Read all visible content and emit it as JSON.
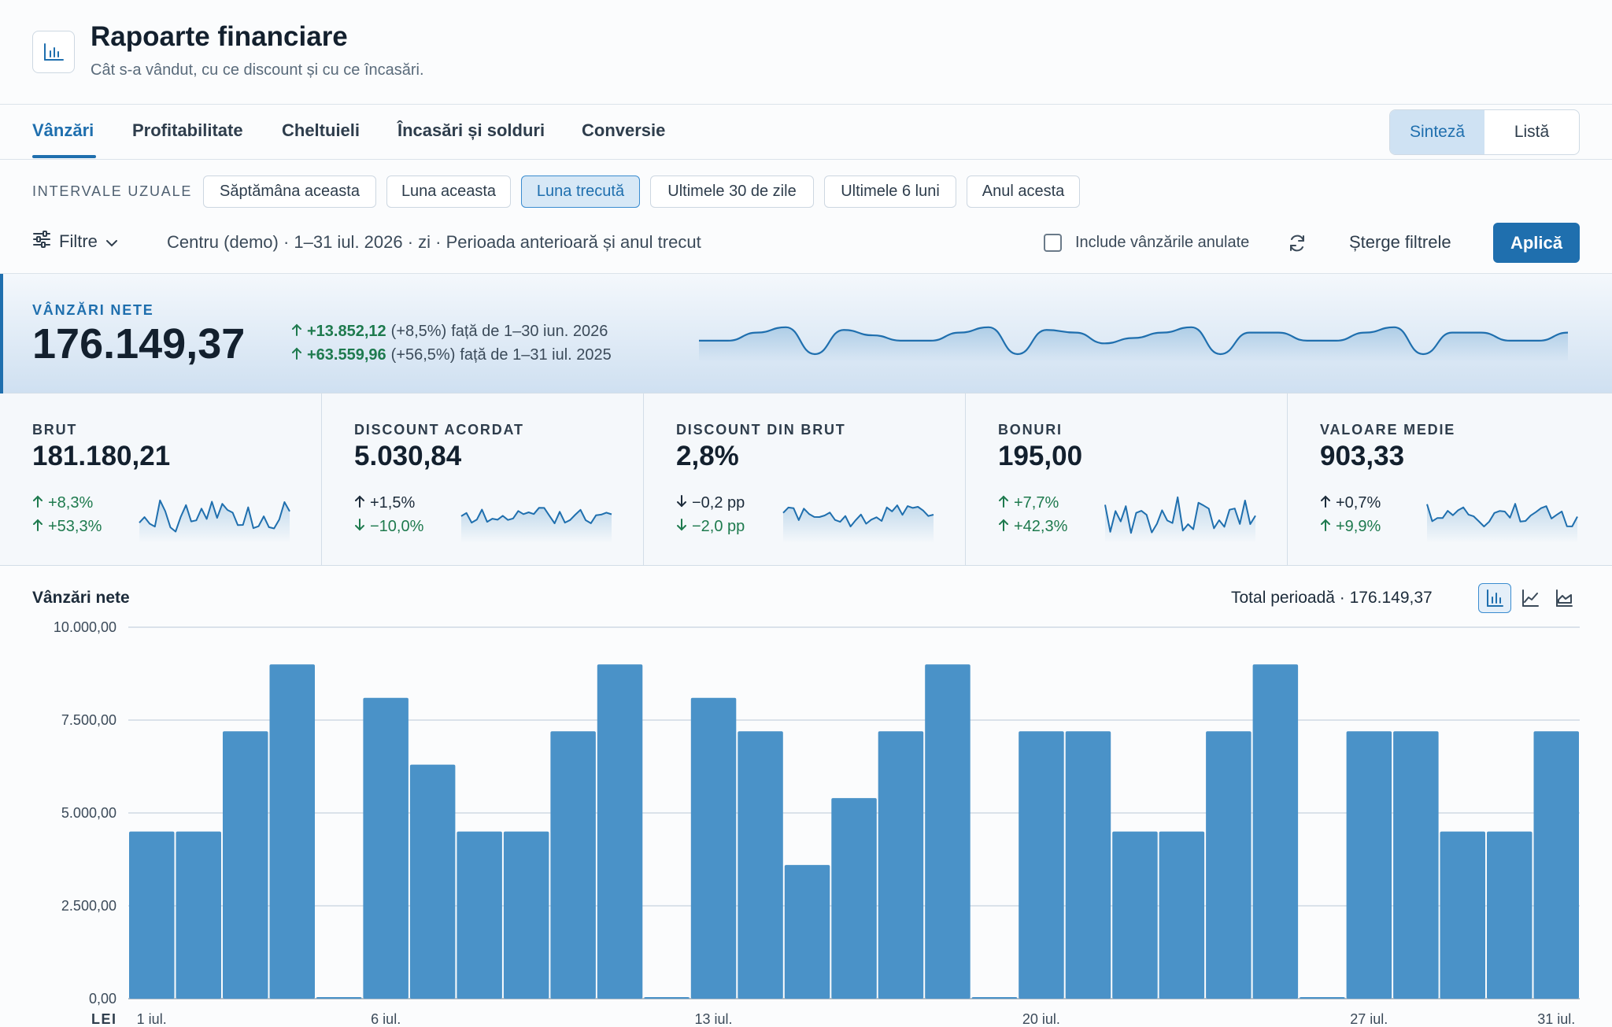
{
  "header": {
    "title": "Rapoarte financiare",
    "subtitle": "Cât s-a vândut, cu ce discount și cu ce încasări.",
    "icon": "bar-chart-icon"
  },
  "tabs": [
    {
      "label": "Vânzări",
      "active": true
    },
    {
      "label": "Profitabilitate"
    },
    {
      "label": "Cheltuieli"
    },
    {
      "label": "Încasări și solduri"
    },
    {
      "label": "Conversie"
    }
  ],
  "view_toggle": {
    "options": [
      "Sinteză",
      "Listă"
    ],
    "selected": "Sinteză"
  },
  "presets": {
    "label": "INTERVALE UZUALE",
    "items": [
      "Săptămâna aceasta",
      "Luna aceasta",
      "Luna trecută",
      "Ultimele 30 de zile",
      "Ultimele 6 luni",
      "Anul acesta"
    ],
    "selected": "Luna trecută"
  },
  "filters": {
    "label": "Filtre",
    "summary": "Centru (demo) · 1–31 iul. 2026 · zi · Perioada anterioară și anul trecut",
    "include_cancelled_label": "Include vânzările anulate",
    "include_cancelled": false,
    "clear_label": "Șterge filtrele",
    "apply_label": "Aplică"
  },
  "hero": {
    "label": "VÂNZĂRI NETE",
    "value": "176.149,37",
    "comparisons": [
      {
        "delta": "+13.852,12",
        "pct": "(+8,5%)",
        "text": "față de 1–30 iun. 2026"
      },
      {
        "delta": "+63.559,96",
        "pct": "(+56,5%)",
        "text": "față de 1–31 iul. 2025"
      }
    ]
  },
  "kpis": [
    {
      "label": "BRUT",
      "value": "181.180,21",
      "d1": {
        "dir": "up",
        "text": "+8,3%",
        "tone": "green"
      },
      "d2": {
        "dir": "up",
        "text": "+53,3%",
        "tone": "green"
      }
    },
    {
      "label": "DISCOUNT ACORDAT",
      "value": "5.030,84",
      "d1": {
        "dir": "up",
        "text": "+1,5%",
        "tone": "dark"
      },
      "d2": {
        "dir": "down",
        "text": "−10,0%",
        "tone": "green"
      }
    },
    {
      "label": "DISCOUNT DIN BRUT",
      "value": "2,8%",
      "d1": {
        "dir": "down",
        "text": "−0,2 pp",
        "tone": "dark"
      },
      "d2": {
        "dir": "down",
        "text": "−2,0 pp",
        "tone": "green"
      }
    },
    {
      "label": "BONURI",
      "value": "195,00",
      "d1": {
        "dir": "up",
        "text": "+7,7%",
        "tone": "green"
      },
      "d2": {
        "dir": "up",
        "text": "+42,3%",
        "tone": "green"
      }
    },
    {
      "label": "VALOARE MEDIE",
      "value": "903,33",
      "d1": {
        "dir": "up",
        "text": "+0,7%",
        "tone": "dark"
      },
      "d2": {
        "dir": "up",
        "text": "+9,9%",
        "tone": "green"
      }
    }
  ],
  "chart_header": {
    "title": "Vânzări nete",
    "total": "Total perioadă · 176.149,37",
    "chart_types": [
      "bar-chart-icon",
      "line-chart-icon",
      "area-chart-icon"
    ],
    "selected_type": "bar-chart-icon"
  },
  "chart_data": {
    "type": "bar",
    "ylabel": "LEI",
    "ylim": [
      0,
      10000
    ],
    "yticks": [
      "0,00",
      "2.500,00",
      "5.000,00",
      "7.500,00",
      "10.000,00"
    ],
    "ytick_values": [
      0,
      2500,
      5000,
      7500,
      10000
    ],
    "xtick_labels": [
      {
        "day": 1,
        "label": "1 iul."
      },
      {
        "day": 6,
        "label": "6 iul."
      },
      {
        "day": 13,
        "label": "13 iul."
      },
      {
        "day": 20,
        "label": "20 iul."
      },
      {
        "day": 27,
        "label": "27 iul."
      },
      {
        "day": 31,
        "label": "31 iul."
      }
    ],
    "days": [
      1,
      2,
      3,
      4,
      5,
      6,
      7,
      8,
      9,
      10,
      11,
      12,
      13,
      14,
      15,
      16,
      17,
      18,
      19,
      20,
      21,
      22,
      23,
      24,
      25,
      26,
      27,
      28,
      29,
      30,
      31
    ],
    "values": [
      4500,
      4500,
      7200,
      9000,
      0,
      8100,
      6300,
      4500,
      4500,
      7200,
      9000,
      0,
      8100,
      7200,
      3600,
      5400,
      7200,
      9000,
      0,
      7200,
      7200,
      4500,
      4500,
      7200,
      9000,
      0,
      7200,
      7200,
      4500,
      4500,
      7200
    ],
    "grid": true,
    "bar_color": "#4a92c8"
  },
  "colors": {
    "accent": "#1f6fae",
    "positive": "#1e7a4e",
    "bar": "#4a92c8"
  }
}
